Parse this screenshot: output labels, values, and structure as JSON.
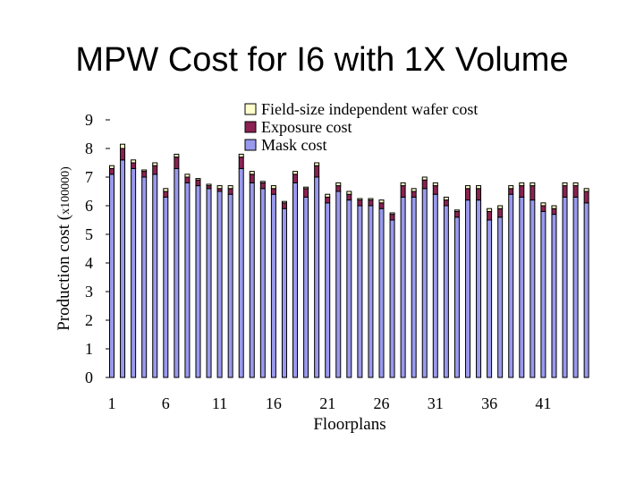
{
  "slide": {
    "title": "MPW Cost for I6 with 1X Volume"
  },
  "chart_data": {
    "type": "bar",
    "stacked": true,
    "title": "",
    "xlabel": "Floorplans",
    "ylabel_main": "Production cost (",
    "ylabel_unit": "x100000)",
    "ylim": [
      0,
      9
    ],
    "yticks": [
      0,
      1,
      2,
      3,
      4,
      5,
      6,
      7,
      8,
      9
    ],
    "x_tick_labels": [
      "1",
      "6",
      "11",
      "16",
      "21",
      "26",
      "31",
      "36",
      "41"
    ],
    "grid": false,
    "legend_position": "top",
    "categories": [
      1,
      2,
      3,
      4,
      5,
      6,
      7,
      8,
      9,
      10,
      11,
      12,
      13,
      14,
      15,
      16,
      17,
      18,
      19,
      20,
      21,
      22,
      23,
      24,
      25,
      26,
      27,
      28,
      29,
      30,
      31,
      32,
      33,
      34,
      35,
      36,
      37,
      38,
      39,
      40,
      41,
      42,
      43,
      44,
      45
    ],
    "series": [
      {
        "name": "Mask cost",
        "color": "#9999ee",
        "values": [
          7.1,
          7.6,
          7.3,
          7.0,
          7.1,
          6.3,
          7.3,
          6.8,
          6.7,
          6.6,
          6.5,
          6.4,
          7.3,
          6.8,
          6.6,
          6.4,
          5.9,
          6.8,
          6.3,
          7.0,
          6.1,
          6.5,
          6.2,
          6.0,
          6.0,
          5.9,
          5.5,
          6.3,
          6.3,
          6.6,
          6.4,
          6.0,
          5.6,
          6.2,
          6.2,
          5.5,
          5.6,
          6.4,
          6.3,
          6.2,
          5.8,
          5.7,
          6.3,
          6.3,
          6.1
        ]
      },
      {
        "name": "Exposure cost",
        "color": "#8b2252",
        "values": [
          0.2,
          0.4,
          0.2,
          0.2,
          0.3,
          0.2,
          0.4,
          0.2,
          0.2,
          0.1,
          0.1,
          0.2,
          0.4,
          0.3,
          0.2,
          0.2,
          0.2,
          0.3,
          0.3,
          0.4,
          0.2,
          0.2,
          0.2,
          0.2,
          0.2,
          0.2,
          0.2,
          0.4,
          0.2,
          0.3,
          0.3,
          0.2,
          0.2,
          0.4,
          0.4,
          0.3,
          0.3,
          0.2,
          0.4,
          0.5,
          0.2,
          0.2,
          0.4,
          0.4,
          0.4
        ]
      },
      {
        "name": "Field-size independent wafer cost",
        "color": "#ffffcc",
        "values": [
          0.1,
          0.15,
          0.1,
          0.05,
          0.1,
          0.1,
          0.1,
          0.1,
          0.05,
          0.05,
          0.1,
          0.1,
          0.1,
          0.1,
          0.05,
          0.1,
          0.05,
          0.1,
          0.05,
          0.1,
          0.1,
          0.1,
          0.1,
          0.05,
          0.05,
          0.1,
          0.05,
          0.1,
          0.1,
          0.1,
          0.1,
          0.1,
          0.05,
          0.1,
          0.1,
          0.1,
          0.1,
          0.1,
          0.1,
          0.1,
          0.1,
          0.1,
          0.1,
          0.1,
          0.1
        ]
      }
    ]
  }
}
